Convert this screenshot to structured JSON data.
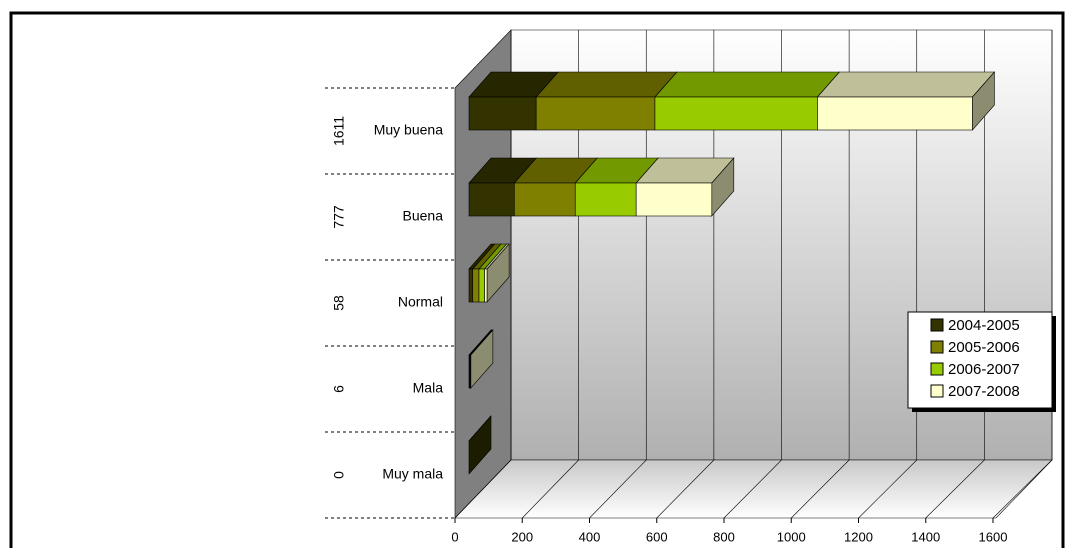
{
  "chart_data": {
    "type": "bar3d-stacked-horizontal",
    "categories": [
      "Muy buena",
      "Buena",
      "Normal",
      "Mala",
      "Muy mala"
    ],
    "totals": [
      1611,
      777,
      58,
      6,
      0
    ],
    "series": [
      {
        "name": "2004-2005",
        "color": "#333300",
        "values": [
          215,
          145,
          12,
          2,
          0
        ]
      },
      {
        "name": "2005-2006",
        "color": "#808000",
        "values": [
          380,
          195,
          20,
          1,
          0
        ]
      },
      {
        "name": "2006-2007",
        "color": "#99cc00",
        "values": [
          520,
          195,
          18,
          1,
          0
        ]
      },
      {
        "name": "2007-2008",
        "color": "#ffffcc",
        "values": [
          496,
          242,
          8,
          2,
          0
        ]
      }
    ],
    "xlim": [
      0,
      1600
    ],
    "xticks": [
      0,
      200,
      400,
      600,
      800,
      1000,
      1200,
      1400,
      1600
    ],
    "grid": true,
    "legend": "right"
  }
}
